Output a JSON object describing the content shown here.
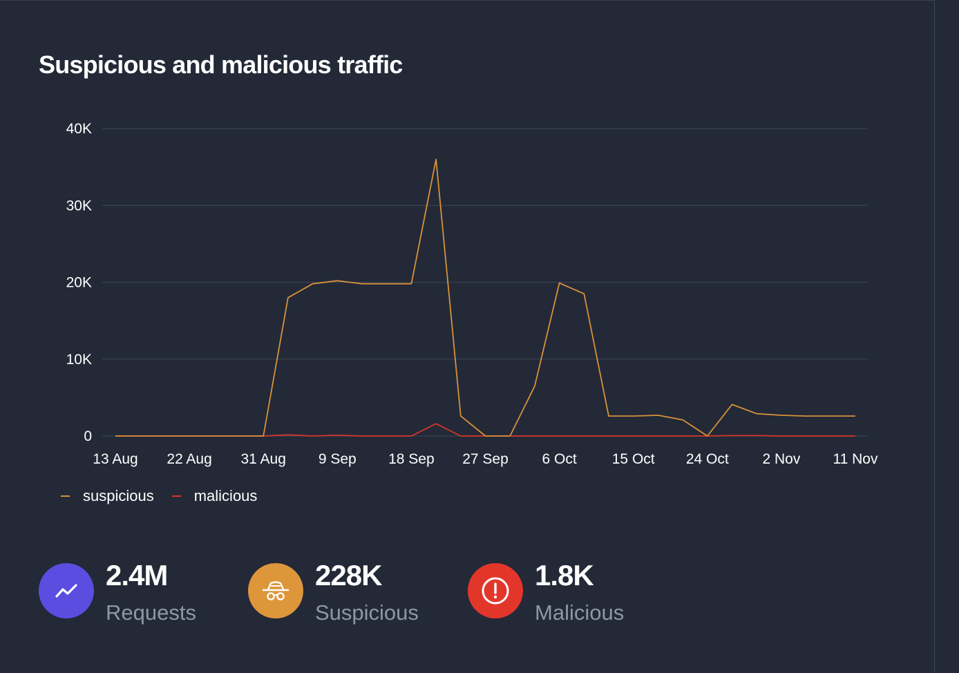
{
  "title": "Suspicious and malicious traffic",
  "colors": {
    "background": "#232937",
    "suspicious": "#d9923a",
    "malicious": "#d8352a",
    "requests_icon": "#5a4de0",
    "suspicious_icon": "#de963b",
    "malicious_icon": "#e3362b",
    "grid": "#394150",
    "label_muted": "#8f97a6"
  },
  "chart_data": {
    "type": "line",
    "x_tick_labels": [
      "13 Aug",
      "22 Aug",
      "31 Aug",
      "9 Sep",
      "18 Sep",
      "27 Sep",
      "6 Oct",
      "15 Oct",
      "24 Oct",
      "2 Nov",
      "11 Nov"
    ],
    "y_tick_labels": [
      "40K",
      "30K",
      "20K",
      "10K",
      "0"
    ],
    "y_ticks": [
      40000,
      30000,
      20000,
      10000,
      0
    ],
    "ylim": [
      0,
      40000
    ],
    "x_days_from_start": [
      0,
      3,
      6,
      9,
      12,
      15,
      18,
      21,
      24,
      27,
      30,
      33,
      36,
      39,
      42,
      45,
      48,
      51,
      54,
      57,
      60,
      63,
      66,
      69,
      72,
      75,
      78,
      81,
      84,
      87,
      90
    ],
    "xlim": [
      0,
      90
    ],
    "x_tick_days": [
      0,
      9,
      18,
      27,
      36,
      45,
      54,
      63,
      72,
      81,
      90
    ],
    "grid": true,
    "legend_position": "bottom-left",
    "series": [
      {
        "name": "suspicious",
        "color": "#d9923a",
        "values": [
          0,
          0,
          0,
          0,
          0,
          0,
          0,
          18000,
          19800,
          20200,
          19800,
          19800,
          19800,
          36000,
          2600,
          0,
          0,
          6500,
          19900,
          18500,
          2600,
          2600,
          2700,
          2100,
          0,
          4100,
          2900,
          2700,
          2600,
          2600,
          2600
        ]
      },
      {
        "name": "malicious",
        "color": "#d8352a",
        "values": [
          0,
          0,
          0,
          0,
          0,
          0,
          0,
          150,
          0,
          100,
          0,
          0,
          0,
          1600,
          0,
          0,
          0,
          0,
          0,
          0,
          0,
          0,
          0,
          0,
          0,
          50,
          50,
          0,
          0,
          0,
          0
        ]
      }
    ]
  },
  "legend": {
    "suspicious": "suspicious",
    "malicious": "malicious"
  },
  "stats": {
    "requests": {
      "value": "2.4M",
      "label": "Requests",
      "icon": "trend-line-icon"
    },
    "suspicious": {
      "value": "228K",
      "label": "Suspicious",
      "icon": "incognito-spy-icon"
    },
    "malicious": {
      "value": "1.8K",
      "label": "Malicious",
      "icon": "exclamation-circle-icon"
    }
  }
}
